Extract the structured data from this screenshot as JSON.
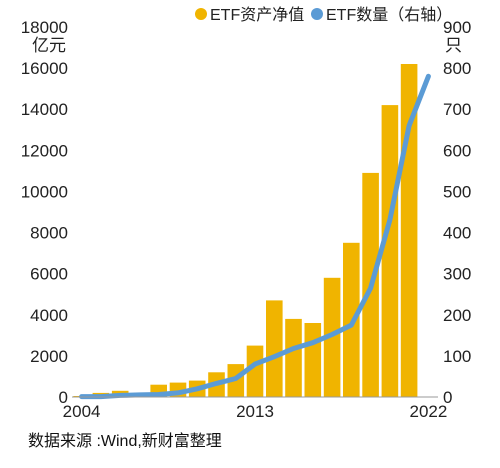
{
  "chart_data": {
    "type": "bar",
    "categories": [
      "2004",
      "2005",
      "2006",
      "2007",
      "2008",
      "2009",
      "2010",
      "2011",
      "2012",
      "2013",
      "2014",
      "2015",
      "2016",
      "2017",
      "2018",
      "2019",
      "2020",
      "2021",
      "2022"
    ],
    "series": [
      {
        "name": "ETF资产净值",
        "type": "bar",
        "axis": "left",
        "color": "#F0B400",
        "values": [
          50,
          200,
          300,
          100,
          600,
          700,
          800,
          1200,
          1600,
          2500,
          4700,
          3800,
          3600,
          5800,
          7500,
          10900,
          14200,
          16200,
          0
        ]
      },
      {
        "name": "ETF数量（右轴）",
        "type": "line",
        "axis": "right",
        "color": "#5B9BD5",
        "values": [
          1,
          1,
          4,
          5,
          6,
          10,
          20,
          33,
          45,
          80,
          98,
          118,
          132,
          152,
          175,
          265,
          430,
          660,
          780
        ]
      }
    ],
    "y_left": {
      "unit": "亿元",
      "ylim": [
        0,
        18000
      ],
      "ticks": [
        "0",
        "2000",
        "4000",
        "6000",
        "8000",
        "10000",
        "12000",
        "14000",
        "16000",
        "18000"
      ]
    },
    "y_right": {
      "unit": "只",
      "ylim": [
        0,
        900
      ],
      "ticks": [
        "0",
        "100",
        "200",
        "300",
        "400",
        "500",
        "600",
        "700",
        "800",
        "900"
      ]
    },
    "x_tick_labels": [
      "2004",
      "2013",
      "2022"
    ],
    "legend": {
      "placement": "top",
      "items": [
        "ETF资产净值",
        "ETF数量（右轴）"
      ]
    },
    "grid": false
  },
  "source_note": "数据来源 :Wind,新财富整理"
}
